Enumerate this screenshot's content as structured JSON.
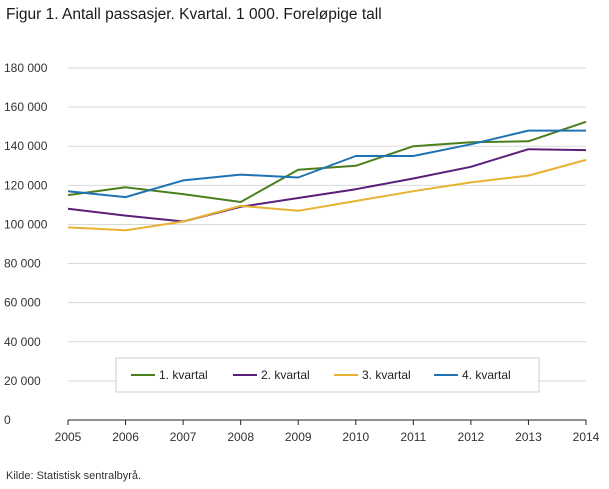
{
  "title": "Figur 1. Antall passasjer. Kvartal. 1 000. Foreløpige tall",
  "source": "Kilde: Statistisk sentralbyrå.",
  "chart_data": {
    "type": "line",
    "title": "Figur 1. Antall passasjer. Kvartal. 1 000. Foreløpige tall",
    "xlabel": "",
    "ylabel": "",
    "x": [
      "2005",
      "2006",
      "2007",
      "2008",
      "2009",
      "2010",
      "2011",
      "2012",
      "2013",
      "2014"
    ],
    "ylim": [
      0,
      180000
    ],
    "yticks": [
      0,
      20000,
      40000,
      60000,
      80000,
      100000,
      120000,
      140000,
      160000,
      180000
    ],
    "ytick_labels": [
      "0",
      "20 000",
      "40 000",
      "60 000",
      "80 000",
      "100 000",
      "120 000",
      "140 000",
      "160 000",
      "180 000"
    ],
    "grid": "horizontal",
    "legend_position": "bottom-inside",
    "series": [
      {
        "name": "1. kvartal",
        "color": "#4b7f1d",
        "values": [
          115000,
          119000,
          115500,
          111500,
          128000,
          130000,
          140000,
          142000,
          142500,
          152500
        ]
      },
      {
        "name": "2. kvartal",
        "color": "#5b1e7a",
        "values": [
          108000,
          104500,
          101500,
          109000,
          113500,
          118000,
          123500,
          129500,
          138500,
          138000
        ]
      },
      {
        "name": "3. kvartal",
        "color": "#e8b132",
        "values": [
          98500,
          97000,
          101500,
          109500,
          107000,
          112000,
          117000,
          121500,
          125000,
          133000
        ]
      },
      {
        "name": "4. kvartal",
        "color": "#1f73b5",
        "values": [
          117000,
          114000,
          122500,
          125500,
          124000,
          135000,
          135000,
          141000,
          148000,
          148000
        ]
      }
    ]
  }
}
